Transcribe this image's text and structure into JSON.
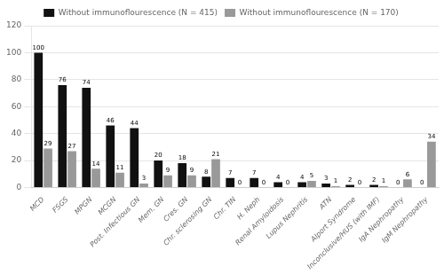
{
  "chart_data": {
    "type": "bar",
    "categories": [
      "MCD",
      "FSGS",
      "MPGN",
      "MCGN",
      "Post. Infectious GN",
      "Mem. GN",
      "Cres. GN",
      "Chr. sclerosing GN",
      "Chr. TIN",
      "H. Neph",
      "Renal Amyloidosis",
      "Lupus Nephritis",
      "ATN",
      "Alport Syndrome",
      "Inconclusive/HUS (with IMF)",
      "IgA Nephropathy",
      "IgM Nephropathy"
    ],
    "series": [
      {
        "name": "Without immunoflourescence (N = 415)",
        "color": "#111111",
        "values": [
          100,
          76,
          74,
          46,
          44,
          20,
          18,
          8,
          7,
          7,
          4,
          4,
          3,
          2,
          2,
          0,
          0
        ]
      },
      {
        "name": "Without immunoflourescence (N = 170)",
        "color": "#999999",
        "values": [
          29,
          27,
          14,
          11,
          3,
          9,
          9,
          21,
          0,
          0,
          0,
          5,
          1,
          0,
          1,
          6,
          34
        ]
      }
    ],
    "ylim": [
      0,
      120
    ],
    "yticks": [
      0,
      20,
      40,
      60,
      80,
      100,
      120
    ],
    "grid": true,
    "legend": "top",
    "data_labels": true
  }
}
